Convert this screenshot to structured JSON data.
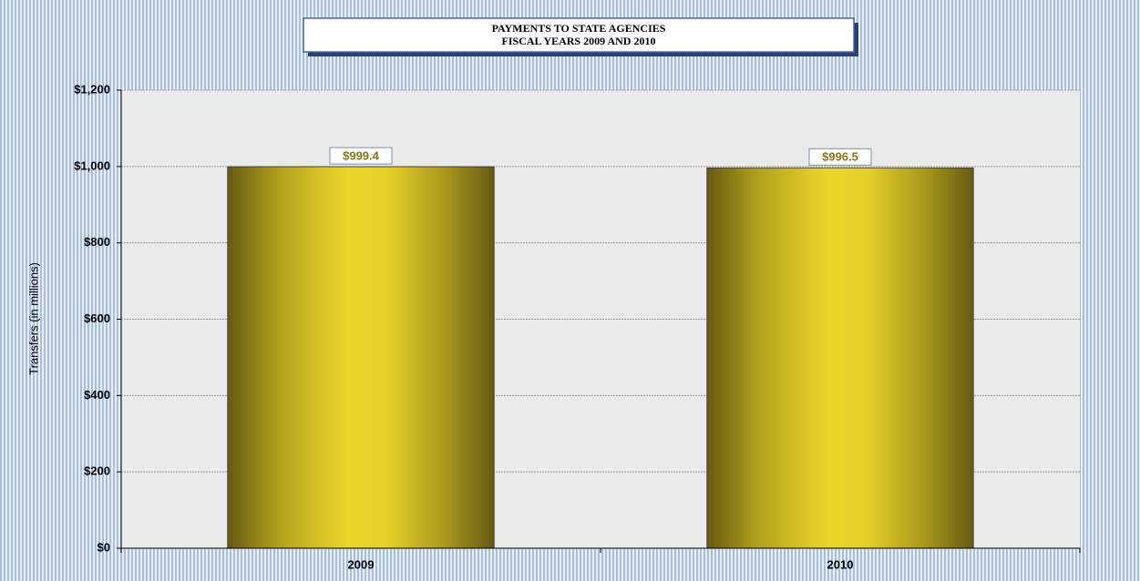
{
  "chart_data": {
    "type": "bar",
    "title": "PAYMENTS TO STATE AGENCIES",
    "subtitle": "FISCAL YEARS 2009 AND 2010",
    "y_label": "Transfers (in millions)",
    "categories": [
      "2009",
      "2010"
    ],
    "values": [
      999.4,
      996.5
    ],
    "value_labels": [
      "$999.4",
      "$996.5"
    ],
    "color": "#e8d22a",
    "ylim": [
      0,
      1200
    ],
    "yticks": [
      {
        "value": 0,
        "label": "$0"
      },
      {
        "value": 200,
        "label": "$200"
      },
      {
        "value": 400,
        "label": "$400"
      },
      {
        "value": 600,
        "label": "$600"
      },
      {
        "value": 800,
        "label": "$800"
      },
      {
        "value": 1000,
        "label": "$1,000"
      },
      {
        "value": 1200,
        "label": "$1,200"
      }
    ],
    "grid": true
  }
}
